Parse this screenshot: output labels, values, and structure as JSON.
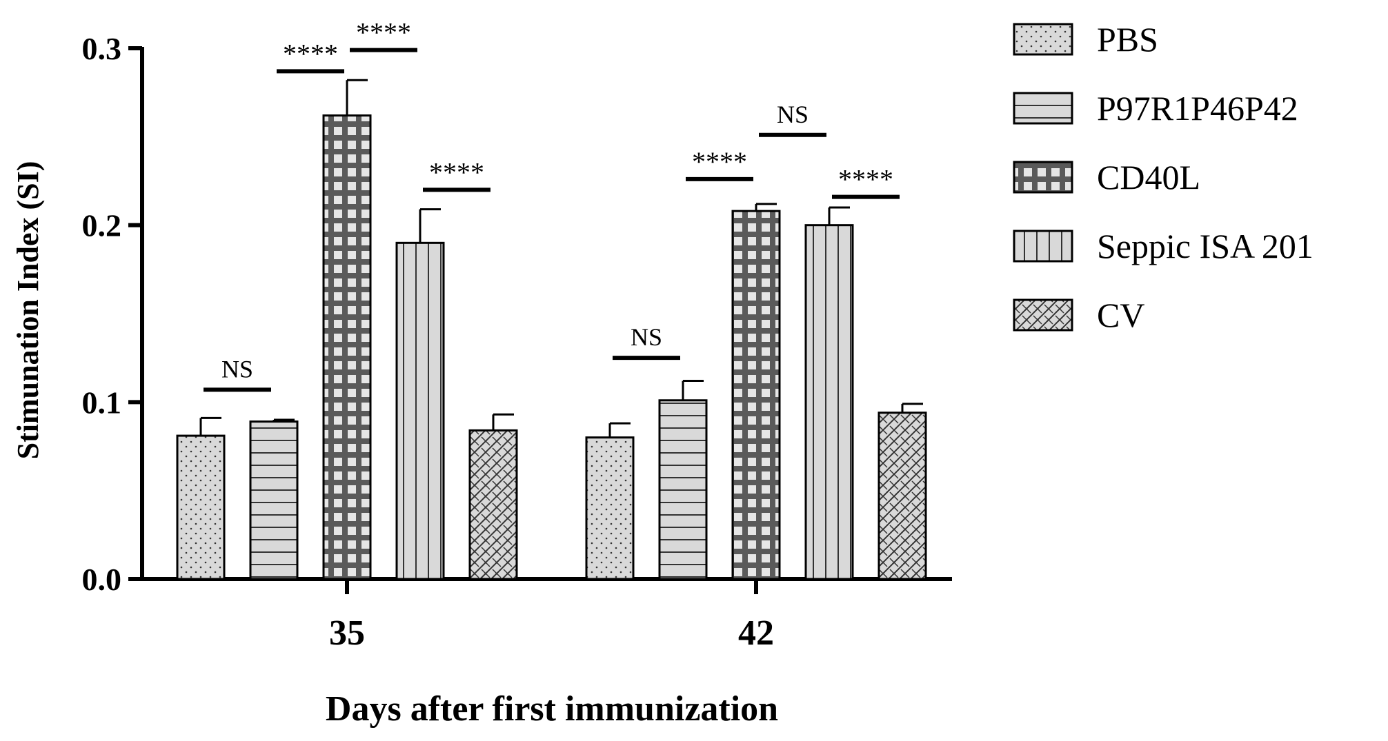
{
  "chart_data": {
    "type": "bar",
    "title": "",
    "xlabel": "Days after first immunization",
    "ylabel": "Stimunation Index (SI)",
    "ylim": [
      0,
      0.3
    ],
    "yticks": [
      "0.0",
      "0.1",
      "0.2",
      "0.3"
    ],
    "categories": [
      "35",
      "42"
    ],
    "grid": false,
    "legend_position": "right",
    "series": [
      {
        "name": "PBS",
        "values": [
          0.081,
          0.08
        ],
        "errors": [
          0.01,
          0.008
        ],
        "pattern": "dots"
      },
      {
        "name": "P97R1P46P42",
        "values": [
          0.089,
          0.101
        ],
        "errors": [
          0.001,
          0.011
        ],
        "pattern": "hlines"
      },
      {
        "name": "CD40L",
        "values": [
          0.262,
          0.208
        ],
        "errors": [
          0.02,
          0.004
        ],
        "pattern": "grid"
      },
      {
        "name": "Seppic ISA 201",
        "values": [
          0.19,
          0.2
        ],
        "errors": [
          0.019,
          0.01
        ],
        "pattern": "vlines"
      },
      {
        "name": "CV",
        "values": [
          0.084,
          0.094
        ],
        "errors": [
          0.009,
          0.005
        ],
        "pattern": "crosshatch"
      }
    ],
    "annotations": [
      {
        "label": "NS",
        "category": 0,
        "from": 0,
        "to": 1,
        "y": 0.107
      },
      {
        "label": "****",
        "category": 0,
        "from": 1,
        "to": 2,
        "y": 0.287
      },
      {
        "label": "****",
        "category": 0,
        "from": 2,
        "to": 3,
        "y": 0.299
      },
      {
        "label": "****",
        "category": 0,
        "from": 3,
        "to": 4,
        "y": 0.22
      },
      {
        "label": "NS",
        "category": 1,
        "from": 0,
        "to": 1,
        "y": 0.125
      },
      {
        "label": "****",
        "category": 1,
        "from": 1,
        "to": 2,
        "y": 0.226
      },
      {
        "label": "NS",
        "category": 1,
        "from": 2,
        "to": 3,
        "y": 0.251
      },
      {
        "label": "****",
        "category": 1,
        "from": 3,
        "to": 4,
        "y": 0.216
      }
    ],
    "colors": {
      "bar_fill": "#d9d9d9",
      "cd40l_fill": "#5a5a5a",
      "stroke": "#000000"
    }
  }
}
